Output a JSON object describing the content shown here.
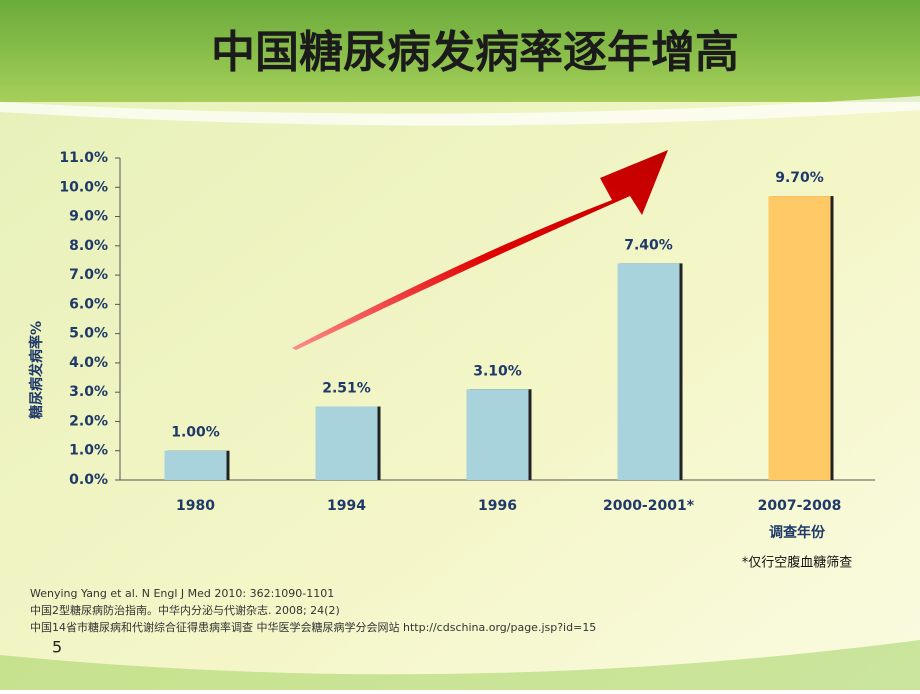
{
  "chart_data": {
    "type": "bar",
    "title": "中国糖尿病发病率逐年增高",
    "y_label": "糖尿病发病率%",
    "x_label": "调查年份",
    "categories": [
      "1980",
      "1994",
      "1996",
      "2000-2001*",
      "2007-2008"
    ],
    "values": [
      1.0,
      2.51,
      3.1,
      7.4,
      9.7
    ],
    "value_labels": [
      "1.00%",
      "2.51%",
      "3.10%",
      "7.40%",
      "9.70%"
    ],
    "colors": [
      "#a9d3dc",
      "#a9d3dc",
      "#a9d3dc",
      "#a9d3dc",
      "#ffc966"
    ],
    "ylim": [
      0,
      11
    ],
    "yticks": [
      {
        "value": 0,
        "label": "0.0%"
      },
      {
        "value": 1,
        "label": "1.0%"
      },
      {
        "value": 2,
        "label": "2.0%"
      },
      {
        "value": 3,
        "label": "3.0%"
      },
      {
        "value": 4,
        "label": "4.0%"
      },
      {
        "value": 5,
        "label": "5.0%"
      },
      {
        "value": 6,
        "label": "6.0%"
      },
      {
        "value": 7,
        "label": "7.0%"
      },
      {
        "value": 8,
        "label": "8.0%"
      },
      {
        "value": 9,
        "label": "9.0%"
      },
      {
        "value": 10,
        "label": "10.0%"
      },
      {
        "value": 11,
        "label": "11.0%"
      }
    ],
    "grid": false
  },
  "note": "*仅行空腹血糖筛查",
  "references": [
    "Wenying Yang et al. N Engl J Med 2010: 362:1090-1101",
    "中国2型糖尿病防治指南。中华内分泌与代谢杂志. 2008; 24(2)",
    "中国14省市糖尿病和代谢综合征得患病率调查 中华医学会糖尿病学分会网站 http://cdschina.org/page.jsp?id=15"
  ],
  "page_number": "5"
}
